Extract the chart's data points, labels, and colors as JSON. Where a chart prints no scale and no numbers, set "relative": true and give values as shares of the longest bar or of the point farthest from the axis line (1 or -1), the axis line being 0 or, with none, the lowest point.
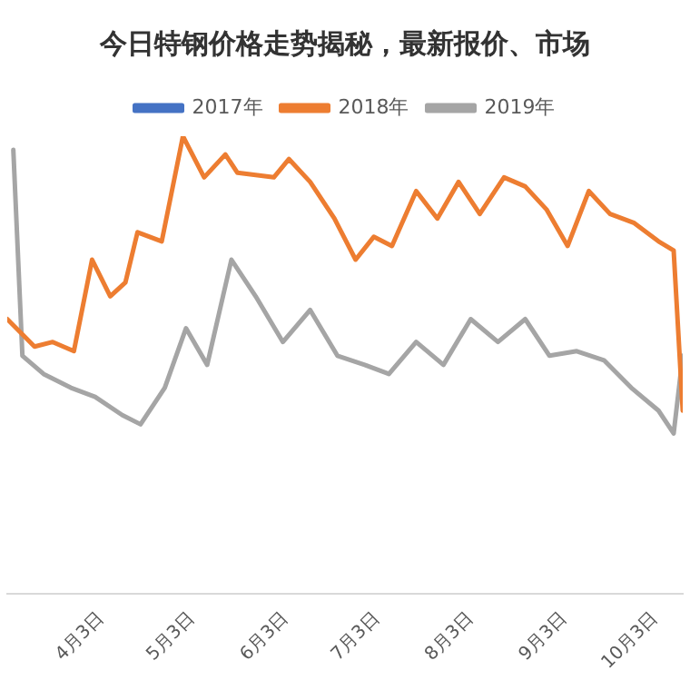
{
  "chart_data": {
    "type": "line",
    "title": "今日特钢价格走势揭秘，最新报价、市场",
    "relative": true,
    "legend": "top",
    "grid": false,
    "marker": "none",
    "line_style": "solid",
    "xlim": [
      "--03-03",
      "--10-12"
    ],
    "xticks": [
      {
        "value": "--04-03",
        "label": "4月3日"
      },
      {
        "value": "--05-03",
        "label": "5月3日"
      },
      {
        "value": "--06-03",
        "label": "6月3日"
      },
      {
        "value": "--07-03",
        "label": "7月3日"
      },
      {
        "value": "--08-03",
        "label": "8月3日"
      },
      {
        "value": "--09-03",
        "label": "9月3日"
      },
      {
        "value": "--10-03",
        "label": "10月3日"
      }
    ],
    "series": [
      {
        "name": "2017年",
        "color": "#4472c4"
      },
      {
        "name": "2018年",
        "color": "#ed7d31",
        "x": [
          "--03-03",
          "--03-12",
          "--03-18",
          "--03-25",
          "--03-31",
          "--04-06",
          "--04-11",
          "--04-15",
          "--04-23",
          "--04-30",
          "--05-07",
          "--05-14",
          "--05-18",
          "--05-30",
          "--06-04",
          "--06-11",
          "--06-19",
          "--06-26",
          "--07-02",
          "--07-08",
          "--07-16",
          "--07-23",
          "--07-30",
          "--08-06",
          "--08-14",
          "--08-21",
          "--08-28",
          "--09-04",
          "--09-11",
          "--09-18",
          "--09-26",
          "--10-04",
          "--10-09",
          "--10-12"
        ],
        "values": [
          0.6,
          0.54,
          0.55,
          0.53,
          0.73,
          0.65,
          0.68,
          0.79,
          0.77,
          1,
          0.91,
          0.96,
          0.92,
          0.91,
          0.95,
          0.9,
          0.82,
          0.73,
          0.78,
          0.76,
          0.88,
          0.82,
          0.9,
          0.83,
          0.91,
          0.89,
          0.84,
          0.76,
          0.88,
          0.83,
          0.81,
          0.77,
          0.75,
          0.4
        ]
      },
      {
        "name": "2019年",
        "color": "#a5a5a5",
        "x": [
          "--03-05",
          "--03-08",
          "--03-15",
          "--03-24",
          "--04-01",
          "--04-10",
          "--04-16",
          "--04-24",
          "--05-01",
          "--05-08",
          "--05-16",
          "--05-24",
          "--06-02",
          "--06-11",
          "--06-20",
          "--06-29",
          "--07-07",
          "--07-16",
          "--07-25",
          "--08-03",
          "--08-12",
          "--08-21",
          "--08-29",
          "--09-07",
          "--09-16",
          "--09-25",
          "--10-04",
          "--10-09",
          "--10-12"
        ],
        "values": [
          0.97,
          0.52,
          0.48,
          0.45,
          0.43,
          0.39,
          0.37,
          0.45,
          0.58,
          0.5,
          0.73,
          0.65,
          0.55,
          0.62,
          0.52,
          0.5,
          0.48,
          0.55,
          0.5,
          0.6,
          0.55,
          0.6,
          0.52,
          0.53,
          0.51,
          0.45,
          0.4,
          0.35,
          0.52
        ]
      }
    ]
  }
}
